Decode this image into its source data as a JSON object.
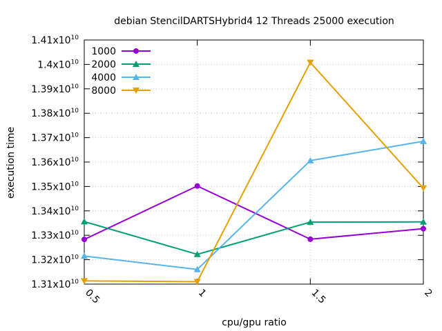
{
  "chart_data": {
    "type": "line",
    "title": "debian StencilDARTSHybrid4 12 Threads 25000 execution",
    "xlabel": "cpu/gpu ratio",
    "ylabel": "execution time",
    "x": [
      0.5,
      1,
      1.5,
      2
    ],
    "x_tick_labels": [
      "0.5",
      "1",
      "1.5",
      "2"
    ],
    "xlim": [
      0.5,
      2
    ],
    "ylim": [
      13100000000,
      14100000000
    ],
    "y_ticks": [
      {
        "value": 13100000000,
        "mantissa": "1.31",
        "base": "x10",
        "exp": "10"
      },
      {
        "value": 13200000000,
        "mantissa": "1.32",
        "base": "x10",
        "exp": "10"
      },
      {
        "value": 13300000000,
        "mantissa": "1.33",
        "base": "x10",
        "exp": "10"
      },
      {
        "value": 13400000000,
        "mantissa": "1.34",
        "base": "x10",
        "exp": "10"
      },
      {
        "value": 13500000000,
        "mantissa": "1.35",
        "base": "x10",
        "exp": "10"
      },
      {
        "value": 13600000000,
        "mantissa": "1.36",
        "base": "x10",
        "exp": "10"
      },
      {
        "value": 13700000000,
        "mantissa": "1.37",
        "base": "x10",
        "exp": "10"
      },
      {
        "value": 13800000000,
        "mantissa": "1.38",
        "base": "x10",
        "exp": "10"
      },
      {
        "value": 13900000000,
        "mantissa": "1.39",
        "base": "x10",
        "exp": "10"
      },
      {
        "value": 14000000000,
        "mantissa": "1.4",
        "base": "x10",
        "exp": "10"
      },
      {
        "value": 14100000000,
        "mantissa": "1.41",
        "base": "x10",
        "exp": "10"
      }
    ],
    "grid": true,
    "legend_position": "top-left",
    "series": [
      {
        "name": "1000",
        "color": "#9400d3",
        "marker": "circle",
        "values": [
          13283000000,
          13502000000,
          13284000000,
          13327000000
        ]
      },
      {
        "name": "2000",
        "color": "#009e73",
        "marker": "triangle-up",
        "values": [
          13356000000,
          13222000000,
          13354000000,
          13355000000
        ]
      },
      {
        "name": "4000",
        "color": "#56b4e9",
        "marker": "triangle-up",
        "values": [
          13215000000,
          13160000000,
          13606000000,
          13685000000
        ]
      },
      {
        "name": "8000",
        "color": "#e69f00",
        "marker": "triangle-down",
        "values": [
          13113000000,
          13110000000,
          14008000000,
          13493000000
        ]
      }
    ]
  }
}
